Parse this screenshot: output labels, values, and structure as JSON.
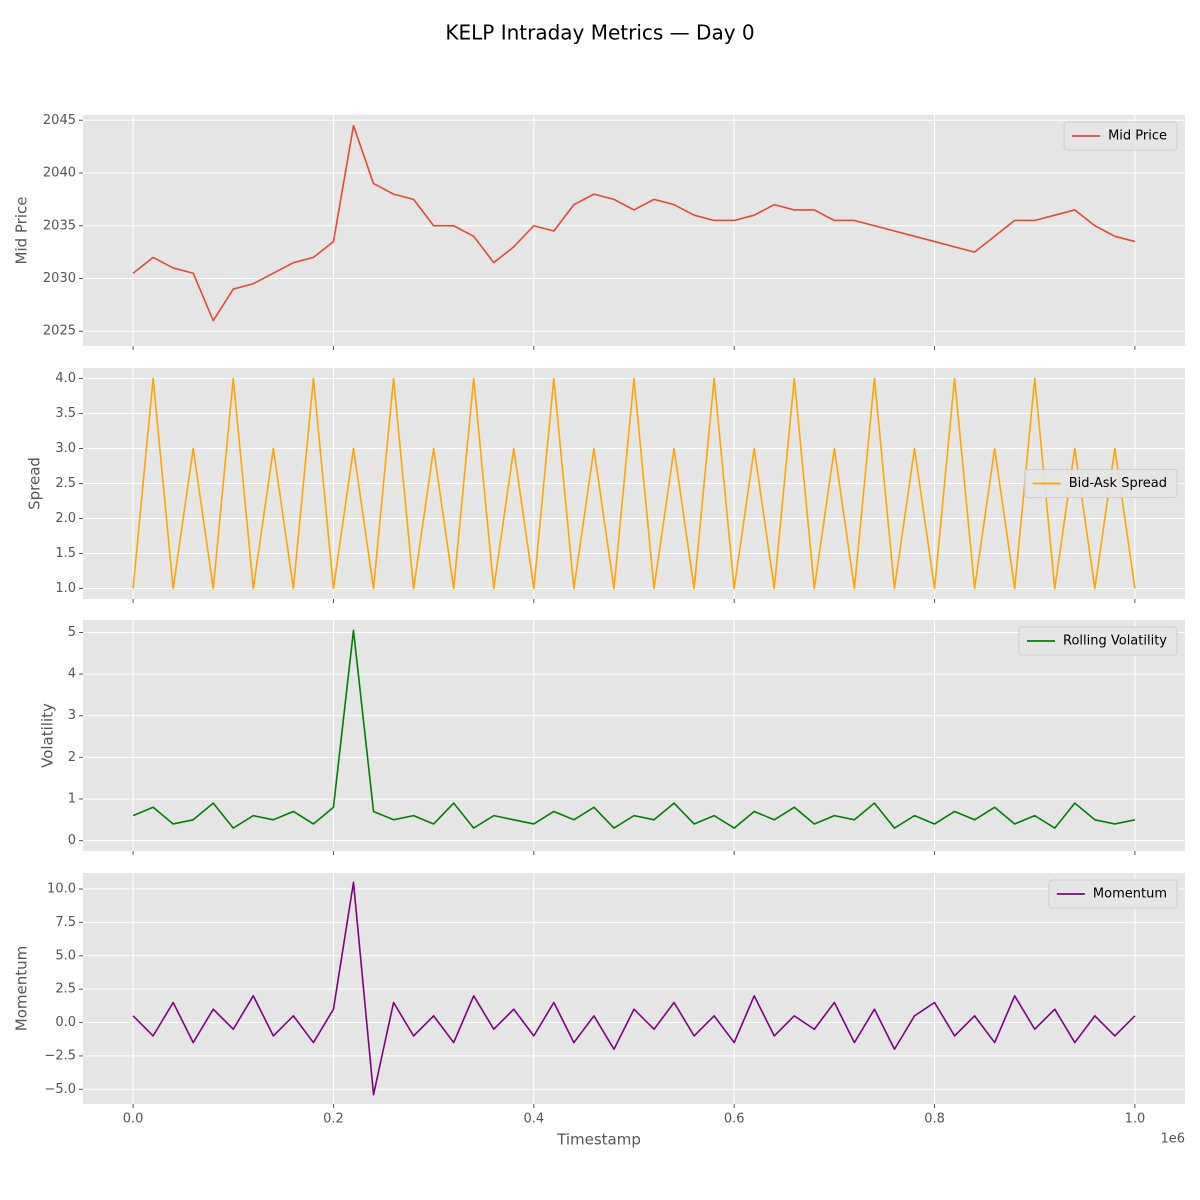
{
  "title": "KELP Intraday Metrics — Day 0",
  "chart_data": [
    {
      "type": "line",
      "ylabel": "Mid Price",
      "legend": "upper right",
      "x": [
        0,
        20000,
        40000,
        60000,
        80000,
        100000,
        120000,
        140000,
        160000,
        180000,
        200000,
        220000,
        240000,
        260000,
        280000,
        300000,
        320000,
        340000,
        360000,
        380000,
        400000,
        420000,
        440000,
        460000,
        480000,
        500000,
        520000,
        540000,
        560000,
        580000,
        600000,
        620000,
        640000,
        660000,
        680000,
        700000,
        720000,
        740000,
        760000,
        780000,
        800000,
        820000,
        840000,
        860000,
        880000,
        900000,
        920000,
        940000,
        960000,
        980000,
        1000000
      ],
      "series": [
        {
          "name": "Mid Price",
          "color": "#E24A33",
          "values": [
            2030.5,
            2032,
            2031,
            2030.5,
            2026,
            2029,
            2029.5,
            2030.5,
            2031.5,
            2032,
            2033.5,
            2044.5,
            2039,
            2038,
            2037.5,
            2035,
            2035,
            2034,
            2031.5,
            2033,
            2035,
            2034.5,
            2037,
            2038,
            2037.5,
            2036.5,
            2037.5,
            2037,
            2036,
            2035.5,
            2035.5,
            2036,
            2037,
            2036.5,
            2036.5,
            2035.5,
            2035.5,
            2035,
            2034.5,
            2034,
            2033.5,
            2033,
            2032.5,
            2034,
            2035.5,
            2035.5,
            2036,
            2036.5,
            2035,
            2034,
            2033.5
          ]
        }
      ],
      "ylim": [
        2023.6,
        2045.5
      ],
      "yticks": [
        2025,
        2030,
        2035,
        2040,
        2045
      ],
      "grid": true
    },
    {
      "type": "line",
      "ylabel": "Spread",
      "legend": "center right",
      "x": [
        0,
        20000,
        40000,
        60000,
        80000,
        100000,
        120000,
        140000,
        160000,
        180000,
        200000,
        220000,
        240000,
        260000,
        280000,
        300000,
        320000,
        340000,
        360000,
        380000,
        400000,
        420000,
        440000,
        460000,
        480000,
        500000,
        520000,
        540000,
        560000,
        580000,
        600000,
        620000,
        640000,
        660000,
        680000,
        700000,
        720000,
        740000,
        760000,
        780000,
        800000,
        820000,
        840000,
        860000,
        880000,
        900000,
        920000,
        940000,
        960000,
        980000,
        1000000
      ],
      "series": [
        {
          "name": "Bid-Ask Spread",
          "color": "#FFA500",
          "values": [
            1,
            4,
            1,
            3,
            1,
            4,
            1,
            3,
            1,
            4,
            1,
            3,
            1,
            4,
            1,
            3,
            1,
            4,
            1,
            3,
            1,
            4,
            1,
            3,
            1,
            4,
            1,
            3,
            1,
            4,
            1,
            3,
            1,
            4,
            1,
            3,
            1,
            4,
            1,
            3,
            1,
            4,
            1,
            3,
            1,
            4,
            1,
            3,
            1,
            3,
            1
          ]
        }
      ],
      "ylim": [
        0.85,
        4.15
      ],
      "yticks": [
        {
          "value": 1,
          "label": "1.0"
        },
        1.5,
        {
          "value": 2,
          "label": "2.0"
        },
        2.5,
        {
          "value": 3,
          "label": "3.0"
        },
        3.5,
        {
          "value": 4,
          "label": "4.0"
        }
      ],
      "grid": true
    },
    {
      "type": "line",
      "ylabel": "Volatility",
      "legend": "upper right",
      "x": [
        0,
        20000,
        40000,
        60000,
        80000,
        100000,
        120000,
        140000,
        160000,
        180000,
        200000,
        220000,
        240000,
        260000,
        280000,
        300000,
        320000,
        340000,
        360000,
        380000,
        400000,
        420000,
        440000,
        460000,
        480000,
        500000,
        520000,
        540000,
        560000,
        580000,
        600000,
        620000,
        640000,
        660000,
        680000,
        700000,
        720000,
        740000,
        760000,
        780000,
        800000,
        820000,
        840000,
        860000,
        880000,
        900000,
        920000,
        940000,
        960000,
        980000,
        1000000
      ],
      "series": [
        {
          "name": "Rolling Volatility",
          "color": "#008000",
          "values": [
            0.6,
            0.8,
            0.4,
            0.5,
            0.9,
            0.3,
            0.6,
            0.5,
            0.7,
            0.4,
            0.8,
            5.05,
            0.7,
            0.5,
            0.6,
            0.4,
            0.9,
            0.3,
            0.6,
            0.5,
            0.4,
            0.7,
            0.5,
            0.8,
            0.3,
            0.6,
            0.5,
            0.9,
            0.4,
            0.6,
            0.3,
            0.7,
            0.5,
            0.8,
            0.4,
            0.6,
            0.5,
            0.9,
            0.3,
            0.6,
            0.4,
            0.7,
            0.5,
            0.8,
            0.4,
            0.6,
            0.3,
            0.9,
            0.5,
            0.4,
            0.5
          ]
        }
      ],
      "ylim": [
        -0.25,
        5.3
      ],
      "yticks": [
        0,
        1,
        2,
        3,
        4,
        5
      ],
      "grid": true
    },
    {
      "type": "line",
      "ylabel": "Momentum",
      "xlabel": "Timestamp",
      "x_offset_label": "1e6",
      "legend": "upper right",
      "x": [
        0,
        20000,
        40000,
        60000,
        80000,
        100000,
        120000,
        140000,
        160000,
        180000,
        200000,
        220000,
        240000,
        260000,
        280000,
        300000,
        320000,
        340000,
        360000,
        380000,
        400000,
        420000,
        440000,
        460000,
        480000,
        500000,
        520000,
        540000,
        560000,
        580000,
        600000,
        620000,
        640000,
        660000,
        680000,
        700000,
        720000,
        740000,
        760000,
        780000,
        800000,
        820000,
        840000,
        860000,
        880000,
        900000,
        920000,
        940000,
        960000,
        980000,
        1000000
      ],
      "series": [
        {
          "name": "Momentum",
          "color": "#800080",
          "values": [
            0.5,
            -1,
            1.5,
            -1.5,
            1,
            -0.5,
            2,
            -1,
            0.5,
            -1.5,
            1,
            10.5,
            -5.4,
            1.5,
            -1,
            0.5,
            -1.5,
            2,
            -0.5,
            1,
            -1,
            1.5,
            -1.5,
            0.5,
            -2,
            1,
            -0.5,
            1.5,
            -1,
            0.5,
            -1.5,
            2,
            -1,
            0.5,
            -0.5,
            1.5,
            -1.5,
            1,
            -2,
            0.5,
            1.5,
            -1,
            0.5,
            -1.5,
            2,
            -0.5,
            1,
            -1.5,
            0.5,
            -1,
            0.5
          ]
        }
      ],
      "ylim": [
        -6.1,
        11.2
      ],
      "yticks": [
        {
          "value": -5,
          "label": "−5.0"
        },
        {
          "value": -2.5,
          "label": "−2.5"
        },
        {
          "value": 0,
          "label": "0.0"
        },
        2.5,
        {
          "value": 5,
          "label": "5.0"
        },
        7.5,
        {
          "value": 10,
          "label": "10.0"
        }
      ],
      "xlim": [
        -50000,
        1050000
      ],
      "xticks": [
        {
          "value": 0,
          "label": "0.0"
        },
        {
          "value": 200000,
          "label": "0.2"
        },
        {
          "value": 400000,
          "label": "0.4"
        },
        {
          "value": 600000,
          "label": "0.6"
        },
        {
          "value": 800000,
          "label": "0.8"
        },
        {
          "value": 1000000,
          "label": "1.0"
        }
      ],
      "grid": true
    }
  ]
}
